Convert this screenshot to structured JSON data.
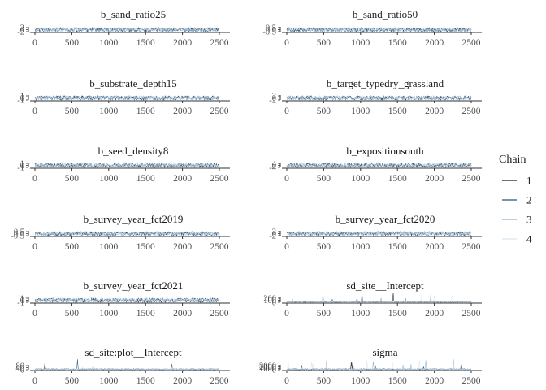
{
  "chart_data": {
    "type": "line",
    "x_ticks": [
      0,
      500,
      1000,
      1500,
      2000,
      2500
    ],
    "xlim": [
      0,
      2500
    ],
    "legend": {
      "title": "Chain",
      "placement": "right",
      "entries": [
        {
          "label": "1",
          "color": "#0b1f33"
        },
        {
          "label": "2",
          "color": "#2f5373"
        },
        {
          "label": "3",
          "color": "#89b3d4"
        },
        {
          "label": "4",
          "color": "#d6e7f5"
        }
      ]
    },
    "panels": [
      {
        "title": "b_sand_ratio25",
        "y_ticks": [
          "-2",
          "0",
          "2"
        ],
        "kind": "noise"
      },
      {
        "title": "b_sand_ratio50",
        "y_ticks": [
          "-0.5",
          "0.0",
          "0.5"
        ],
        "kind": "noise"
      },
      {
        "title": "b_substrate_depth15",
        "y_ticks": [
          "-1",
          "0",
          "1"
        ],
        "kind": "noise"
      },
      {
        "title": "b_target_typedry_grassland",
        "y_ticks": [
          "-2",
          "0",
          "2"
        ],
        "kind": "noise"
      },
      {
        "title": "b_seed_density8",
        "y_ticks": [
          "-1",
          "0",
          "1"
        ],
        "kind": "noise"
      },
      {
        "title": "b_expositionsouth",
        "y_ticks": [
          "-4",
          "0",
          "4"
        ],
        "kind": "noise"
      },
      {
        "title": "b_survey_year_fct2019",
        "y_ticks": [
          "-0.5",
          "0.0",
          "0.5"
        ],
        "kind": "noise"
      },
      {
        "title": "b_survey_year_fct2020",
        "y_ticks": [
          "-2",
          "0",
          "2"
        ],
        "kind": "noise"
      },
      {
        "title": "b_survey_year_fct2021",
        "y_ticks": [
          "-1",
          "0",
          "1"
        ],
        "kind": "noise"
      },
      {
        "title": "sd_site__Intercept",
        "y_ticks": [
          "0",
          "100",
          "200"
        ],
        "kind": "spiky"
      },
      {
        "title": "sd_site:plot__Intercept",
        "y_ticks": [
          "0",
          "40",
          "80"
        ],
        "kind": "spiky"
      },
      {
        "title": "sigma",
        "y_ticks": [
          "0",
          "1000",
          "2000",
          "3000"
        ],
        "kind": "spiky"
      }
    ]
  }
}
